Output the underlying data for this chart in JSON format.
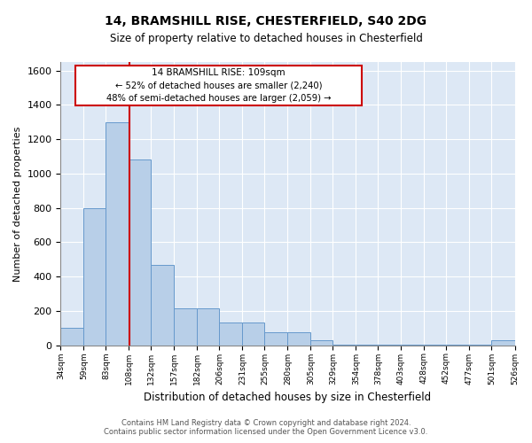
{
  "title1": "14, BRAMSHILL RISE, CHESTERFIELD, S40 2DG",
  "title2": "Size of property relative to detached houses in Chesterfield",
  "xlabel": "Distribution of detached houses by size in Chesterfield",
  "ylabel": "Number of detached properties",
  "footer1": "Contains HM Land Registry data © Crown copyright and database right 2024.",
  "footer2": "Contains public sector information licensed under the Open Government Licence v3.0.",
  "annotation_line1": "14 BRAMSHILL RISE: 109sqm",
  "annotation_line2": "← 52% of detached houses are smaller (2,240)",
  "annotation_line3": "48% of semi-detached houses are larger (2,059) →",
  "property_size": 109,
  "bin_edges": [
    34,
    59,
    83,
    108,
    132,
    157,
    182,
    206,
    231,
    255,
    280,
    305,
    329,
    354,
    378,
    403,
    428,
    452,
    477,
    501,
    526
  ],
  "bar_heights": [
    100,
    800,
    1300,
    1080,
    470,
    215,
    215,
    130,
    130,
    75,
    75,
    30,
    5,
    5,
    5,
    5,
    5,
    5,
    5,
    30
  ],
  "bar_color": "#b8cfe8",
  "bar_edge_color": "#6699cc",
  "vline_color": "#cc0000",
  "annotation_box_color": "#cc0000",
  "background_color": "#dde8f5",
  "ylim": [
    0,
    1650
  ],
  "yticks": [
    0,
    200,
    400,
    600,
    800,
    1000,
    1200,
    1400,
    1600
  ]
}
